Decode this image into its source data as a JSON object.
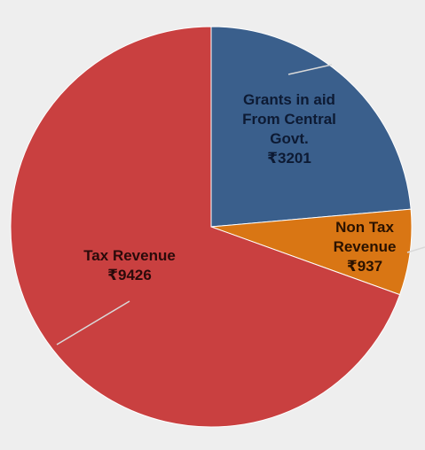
{
  "chart_data": {
    "type": "pie",
    "title": "",
    "start_angle_deg": 0,
    "direction": "clockwise",
    "slices": [
      {
        "label_lines": [
          "Grants in aid",
          "From Central",
          "Govt.",
          "₹3201"
        ],
        "category": "Grants in aid From Central Govt.",
        "value": 3201,
        "value_text": "₹3201",
        "color": "#3a5f8c",
        "text_color": "#0d1a33"
      },
      {
        "label_lines": [
          "Non Tax",
          "Revenue",
          "₹937"
        ],
        "category": "Non Tax Revenue",
        "value": 937,
        "value_text": "₹937",
        "color": "#d97614",
        "text_color": "#2a1200"
      },
      {
        "label_lines": [
          "Tax Revenue",
          "₹9426"
        ],
        "category": "Tax Revenue",
        "value": 9426,
        "value_text": "₹9426",
        "color": "#c94040",
        "text_color": "#2a0a0a"
      }
    ],
    "slice_border_color": "#ffffff",
    "leader_line_color": "#d9d9d9"
  }
}
